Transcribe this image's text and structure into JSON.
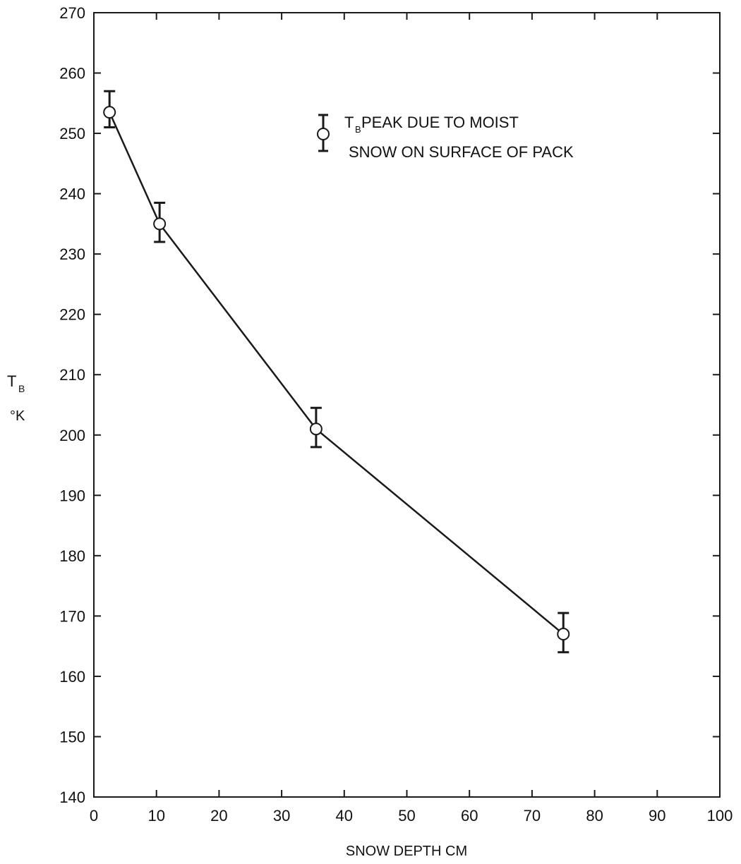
{
  "chart_data": {
    "type": "line",
    "title": "",
    "xlabel": "SNOW DEPTH CM",
    "ylabel_main": "T",
    "ylabel_sub": "B",
    "ylabel_unit": "°K",
    "xlim": [
      0,
      100
    ],
    "ylim": [
      140,
      270
    ],
    "x_ticks": [
      0,
      10,
      20,
      30,
      40,
      50,
      60,
      70,
      80,
      90,
      100
    ],
    "y_ticks": [
      140,
      150,
      160,
      170,
      180,
      190,
      200,
      210,
      220,
      230,
      240,
      250,
      260,
      270
    ],
    "x_tick_labels": [
      "0",
      "10",
      "20",
      "30",
      "40",
      "50",
      "60",
      "70",
      "80",
      "90",
      "100"
    ],
    "y_tick_labels": [
      "140",
      "150",
      "160",
      "170",
      "180",
      "190",
      "200",
      "210",
      "220",
      "230",
      "240",
      "250",
      "260",
      "270"
    ],
    "grid": false,
    "legend_position": "top-right",
    "legend": {
      "main": "T",
      "sub": "B",
      "line1_rest": " PEAK DUE TO MOIST",
      "line2": "SNOW ON SURFACE OF PACK"
    },
    "series": [
      {
        "x": [
          2.5,
          10.5,
          35.5,
          75
        ],
        "y": [
          253.5,
          235,
          201,
          167
        ],
        "y_err_low": [
          251,
          232,
          198,
          164
        ],
        "y_err_high": [
          257,
          238.5,
          204.5,
          170.5
        ]
      }
    ],
    "colors": {
      "line": "#1a1a1a",
      "marker_fill": "#ffffff"
    }
  }
}
